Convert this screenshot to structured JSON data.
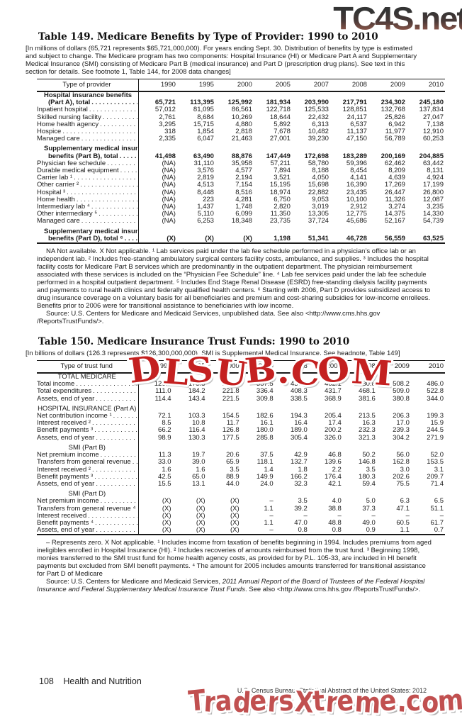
{
  "watermarks": {
    "top": "TC4S.net",
    "middle": "DLSUB.COM",
    "bottom": "TradersXtreme.com"
  },
  "colors": {
    "ink": "#1a1a1a",
    "watermark_mid_red": "#c42020",
    "watermark_bottom_red": "#c15050"
  },
  "table149": {
    "title": "Table 149. Medicare Benefits by Type of Provider: 1990 to 2010",
    "headnote": "[In millions of dollars (65,721 represents $65,721,000,000). For years ending Sept. 30. Distribution of benefits by type is estimated and subject to change. The Medicare program has two components: Hospital Insurance (HI) or Medicare Part A and Supplementary Medical Insurance (SMI) consisting of Medicare Part B (medical insurance) and Part D (prescription drug plans). See text in this section for details. See footnote 1, Table 144, for 2008 data changes]",
    "stub_header": "Type of provider",
    "years": [
      "1990",
      "1995",
      "2000",
      "2005",
      "2007",
      "2008",
      "2009",
      "2010"
    ],
    "rows": [
      {
        "type": "group2",
        "line1": "Hospital insurance benefits",
        "line2": "(Part A), total",
        "values": [
          "65,721",
          "113,395",
          "125,992",
          "181,934",
          "203,990",
          "217,791",
          "234,302",
          "245,180"
        ]
      },
      {
        "type": "item",
        "label": "Inpatient hospital",
        "values": [
          "57,012",
          "81,095",
          "86,561",
          "122,718",
          "125,533",
          "128,851",
          "132,768",
          "137,834"
        ]
      },
      {
        "type": "item",
        "label": "Skilled nursing facility",
        "values": [
          "2,761",
          "8,684",
          "10,269",
          "18,644",
          "22,432",
          "24,117",
          "25,826",
          "27,047"
        ]
      },
      {
        "type": "item",
        "label": "Home health agency",
        "values": [
          "3,295",
          "15,715",
          "4,880",
          "5,892",
          "6,313",
          "6,537",
          "6,942",
          "7,138"
        ]
      },
      {
        "type": "item",
        "label": "Hospice",
        "values": [
          "318",
          "1,854",
          "2,818",
          "7,678",
          "10,482",
          "11,137",
          "11,977",
          "12,910"
        ]
      },
      {
        "type": "item",
        "label": "Managed care",
        "values": [
          "2,335",
          "6,047",
          "21,463",
          "27,001",
          "39,230",
          "47,150",
          "56,789",
          "60,253"
        ]
      },
      {
        "type": "group2",
        "line1": "Supplementary medical insurance",
        "line2": "benefits (Part B), total",
        "values": [
          "41,498",
          "63,490",
          "88,876",
          "147,449",
          "172,698",
          "183,289",
          "200,169",
          "204,885"
        ]
      },
      {
        "type": "item",
        "label": "Physician fee schedule",
        "values": [
          "(NA)",
          "31,110",
          "35,958",
          "57,211",
          "58,780",
          "59,396",
          "62,462",
          "63,442"
        ]
      },
      {
        "type": "item",
        "label": "Durable medical equipment",
        "values": [
          "(NA)",
          "3,576",
          "4,577",
          "7,894",
          "8,188",
          "8,454",
          "8,209",
          "8,131"
        ]
      },
      {
        "type": "item",
        "label": "Carrier lab ¹",
        "values": [
          "(NA)",
          "2,819",
          "2,194",
          "3,521",
          "4,050",
          "4,141",
          "4,639",
          "4,924"
        ]
      },
      {
        "type": "item",
        "label": "Other carrier ²",
        "values": [
          "(NA)",
          "4,513",
          "7,154",
          "15,195",
          "15,698",
          "16,390",
          "17,269",
          "17,199"
        ]
      },
      {
        "type": "item",
        "label": "Hospital ³",
        "values": [
          "(NA)",
          "8,448",
          "8,516",
          "18,974",
          "22,882",
          "23,435",
          "26,447",
          "26,800"
        ]
      },
      {
        "type": "item",
        "label": "Home health",
        "values": [
          "(NA)",
          "223",
          "4,281",
          "6,750",
          "9,053",
          "10,100",
          "11,326",
          "12,087"
        ]
      },
      {
        "type": "item",
        "label": "Intermediary lab ⁴",
        "values": [
          "(NA)",
          "1,437",
          "1,748",
          "2,820",
          "3,019",
          "2,912",
          "3,274",
          "3,235"
        ]
      },
      {
        "type": "item",
        "label": "Other intermediary ⁵",
        "values": [
          "(NA)",
          "5,110",
          "6,099",
          "11,350",
          "13,305",
          "12,775",
          "14,375",
          "14,330"
        ]
      },
      {
        "type": "item",
        "label": "Managed care",
        "values": [
          "(NA)",
          "6,253",
          "18,348",
          "23,735",
          "37,724",
          "45,686",
          "52,167",
          "54,739"
        ]
      },
      {
        "type": "group2",
        "line1": "Supplementary medical insurance",
        "line2": "benefits (Part D), total ⁶",
        "values": [
          "(X)",
          "(X)",
          "(X)",
          "1,198",
          "51,341",
          "46,728",
          "56,559",
          "63,525"
        ]
      }
    ],
    "footnote": "NA Not available. X Not applicable. ¹ Lab services paid under the lab fee schedule performed in a physician’s office lab or an independent lab. ² Includes free-standing ambulatory surgical centers facility costs, ambulance, and supplies. ³ Includes the hospital facility costs for Medicare Part B services which are predominantly in the outpatient department. The physician reimbursement associated with these services is included on the “Physician Fee Schedule” line. ⁴ Lab fee services paid under the lab fee schedule performed in a hospital outpatient department. ⁵ Includes End Stage Renal Disease (ESRD) free-standing dialysis facility payments and payments to rural health clinics and federally qualified health centers. ⁶ Starting with 2006, Part D provides subsidized access to drug insurance coverage on a voluntary basis for all beneficiaries and premium and cost-sharing subsidies for low-income enrollees. Benefits prior to 2006 were for transitional assistance to beneficiaries with low income.",
    "source": "Source: U.S. Centers for Medicare and Medicaid Services, unpublished data. See also <http://www.cms.hhs.gov /ReportsTrustFunds/>."
  },
  "table150": {
    "title": "Table 150. Medicare Insurance Trust Funds: 1990 to 2010",
    "headnote": "[In billions of dollars (126.3 represents $126,300,000,000). SMI is Supplemental Medical Insurance. See headnote, Table 149]",
    "stub_header": "Type of trust fund",
    "years": [
      "1990",
      "1995",
      "2000",
      "2005",
      "2006",
      "2007",
      "2008",
      "2009",
      "2010"
    ],
    "rows": [
      {
        "type": "section",
        "label": "TOTAL MEDICARE"
      },
      {
        "type": "item",
        "label": "Total income",
        "values": [
          "126.3",
          "175.3",
          "257.1",
          "357.5",
          "437.0",
          "462.1",
          "480.8",
          "508.2",
          "486.0"
        ]
      },
      {
        "type": "item",
        "label": "Total expenditures",
        "values": [
          "111.0",
          "184.2",
          "221.8",
          "336.4",
          "408.3",
          "431.7",
          "468.1",
          "509.0",
          "522.8"
        ]
      },
      {
        "type": "item",
        "label": "Assets, end of year",
        "values": [
          "114.4",
          "143.4",
          "221.5",
          "309.8",
          "338.5",
          "368.9",
          "381.6",
          "380.8",
          "344.0"
        ]
      },
      {
        "type": "section",
        "label": "HOSPITAL INSURANCE (Part A)"
      },
      {
        "type": "item",
        "label": "Net contribution income ¹",
        "values": [
          "72.1",
          "103.3",
          "154.5",
          "182.6",
          "194.3",
          "205.4",
          "213.5",
          "206.3",
          "199.3"
        ]
      },
      {
        "type": "item",
        "label": "Interest received ²",
        "values": [
          "8.5",
          "10.8",
          "11.7",
          "16.1",
          "16.4",
          "17.4",
          "16.3",
          "17.0",
          "15.9"
        ]
      },
      {
        "type": "item",
        "label": "Benefit payments ³",
        "values": [
          "66.2",
          "116.4",
          "126.8",
          "180.0",
          "189.0",
          "200.2",
          "232.3",
          "239.3",
          "244.5"
        ]
      },
      {
        "type": "item",
        "label": "Assets, end of year",
        "values": [
          "98.9",
          "130.3",
          "177.5",
          "285.8",
          "305.4",
          "326.0",
          "321.3",
          "304.2",
          "271.9"
        ]
      },
      {
        "type": "section",
        "label": "SMI (Part B)"
      },
      {
        "type": "item",
        "label": "Net premium income",
        "values": [
          "11.3",
          "19.7",
          "20.6",
          "37.5",
          "42.9",
          "46.8",
          "50.2",
          "56.0",
          "52.0"
        ]
      },
      {
        "type": "item",
        "label": "Transfers from general revenue",
        "values": [
          "33.0",
          "39.0",
          "65.9",
          "118.1",
          "132.7",
          "139.6",
          "146.8",
          "162.8",
          "153.5"
        ]
      },
      {
        "type": "item",
        "label": "Interest received ²",
        "values": [
          "1.6",
          "1.6",
          "3.5",
          "1.4",
          "1.8",
          "2.2",
          "3.5",
          "3.0",
          "3.1"
        ]
      },
      {
        "type": "item",
        "label": "Benefit payments ³",
        "values": [
          "42.5",
          "65.0",
          "88.9",
          "149.9",
          "166.2",
          "176.4",
          "180.3",
          "202.6",
          "209.7"
        ]
      },
      {
        "type": "item",
        "label": "Assets, end of year",
        "values": [
          "15.5",
          "13.1",
          "44.0",
          "24.0",
          "32.3",
          "42.1",
          "59.4",
          "75.5",
          "71.4"
        ]
      },
      {
        "type": "section",
        "label": "SMI (Part D)"
      },
      {
        "type": "item",
        "label": "Net premium income",
        "values": [
          "(X)",
          "(X)",
          "(X)",
          "–",
          "3.5",
          "4.0",
          "5.0",
          "6.3",
          "6.5"
        ]
      },
      {
        "type": "item",
        "label": "Transfers from general revenue ⁴",
        "values": [
          "(X)",
          "(X)",
          "(X)",
          "1.1",
          "39.2",
          "38.8",
          "37.3",
          "47.1",
          "51.1"
        ]
      },
      {
        "type": "item",
        "label": "Interest received",
        "values": [
          "(X)",
          "(X)",
          "(X)",
          "–",
          "–",
          "–",
          "–",
          "–",
          "–"
        ]
      },
      {
        "type": "item",
        "label": "Benefit payments ⁴",
        "values": [
          "(X)",
          "(X)",
          "(X)",
          "1.1",
          "47.0",
          "48.8",
          "49.0",
          "60.5",
          "61.7"
        ]
      },
      {
        "type": "item",
        "label": "Assets, end of year",
        "values": [
          "(X)",
          "(X)",
          "(X)",
          "–",
          "0.8",
          "0.8",
          "0.9",
          "1.1",
          "0.7"
        ]
      }
    ],
    "footnote": "– Represents zero. X Not applicable. ¹ Includes income from taxation of benefits beginning in 1994. Includes premiums from aged ineligibles enrolled in Hospital Insurance (HI). ² Includes recoveries of amounts reimbursed from the trust fund. ³ Beginning 1998, monies transferred to the SMI trust fund for home health agency costs, as provided for by P.L. 105-33, are included in HI benefit payments but excluded from SMI benefit payments. ⁴ The amount for 2005 includes amounts transferred for transitional assistance for Part D of Medicare",
    "source_prefix": "Source: U.S. Centers for Medicare and Medicaid Services, ",
    "source_italic": "2011 Annual Report of the Board of Trustees of the Federal Hospital Insurance and Federal Supplementary Medical Insurance Trust Funds",
    "source_suffix": ". See also <http://www.cms.hhs.gov /ReportsTrustFunds/>."
  },
  "footer": {
    "page_number": "108",
    "section_title": "Health and Nutrition",
    "credit": "U.S. Census Bureau, Statistical Abstract of the United States: 2012"
  }
}
